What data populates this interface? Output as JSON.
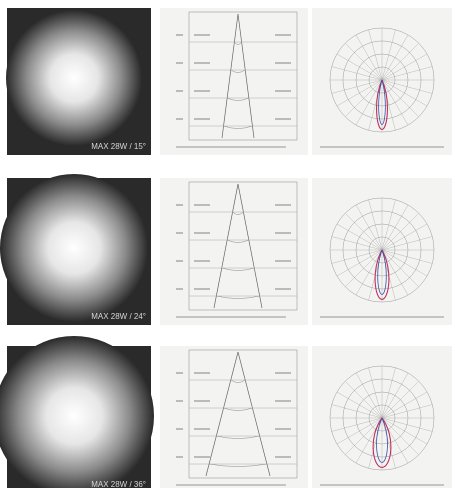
{
  "rows": [
    {
      "beam_label": "MAX 28W / 15°"
    },
    {
      "beam_label": "MAX 28W / 24°"
    },
    {
      "beam_label": "MAX 28W / 36°"
    }
  ]
}
